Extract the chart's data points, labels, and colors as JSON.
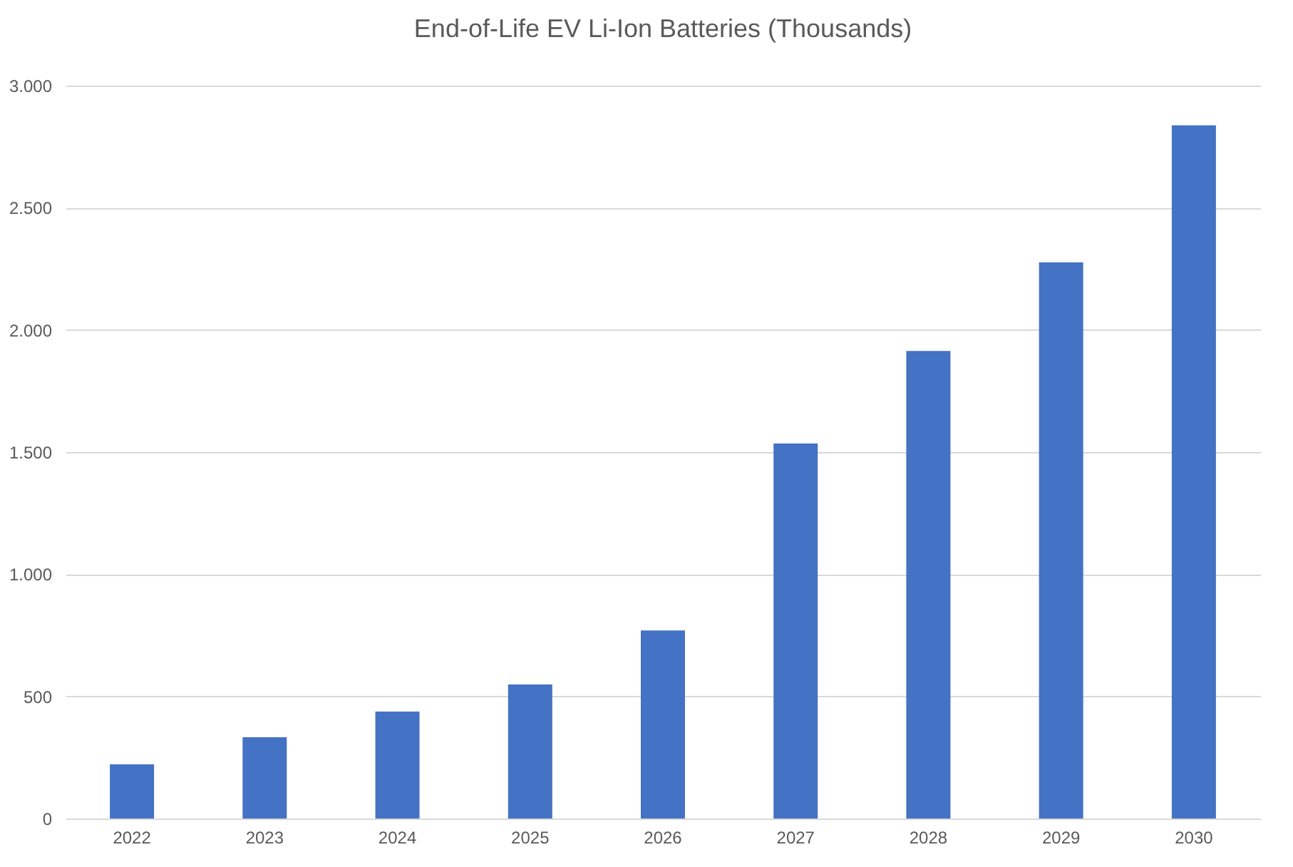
{
  "chart_data": {
    "type": "bar",
    "title": "End-of-Life EV Li-Ion Batteries (Thousands)",
    "categories": [
      "2022",
      "2023",
      "2024",
      "2025",
      "2026",
      "2027",
      "2028",
      "2029",
      "2030"
    ],
    "values": [
      222,
      333,
      438,
      549,
      770,
      1535,
      1914,
      2276,
      2837
    ],
    "color": "#4472c4",
    "ylim": [
      0,
      3000
    ],
    "yticks": [
      0,
      500,
      {
        "value": 1000,
        "label": "1.000"
      },
      {
        "value": 1500,
        "label": "1.500"
      },
      {
        "value": 2000,
        "label": "2.000"
      },
      {
        "value": 2500,
        "label": "2.500"
      },
      {
        "value": 3000,
        "label": "3.000"
      }
    ],
    "grid": "y"
  }
}
